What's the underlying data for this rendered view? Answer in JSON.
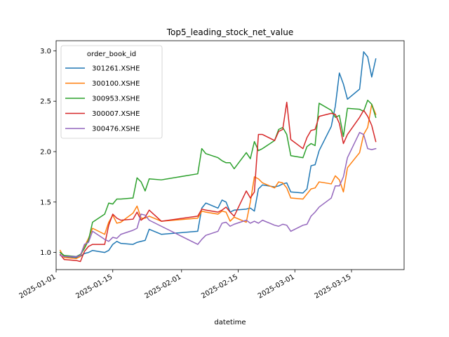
{
  "chart_data": {
    "type": "line",
    "title": "Top5_leading_stock_net_value",
    "xlabel": "datetime",
    "ylabel": "",
    "ylim": [
      0.83,
      3.1
    ],
    "xlim": [
      "2025-01-01",
      "2025-03-28"
    ],
    "grid": false,
    "legend": {
      "title": "order_book_id",
      "placement": "top-left"
    },
    "x_ticks": [
      "2025-01-01",
      "2025-01-15",
      "2025-02-01",
      "2025-02-15",
      "2025-03-01",
      "2025-03-15"
    ],
    "y_ticks": [
      1.0,
      1.5,
      2.0,
      2.5,
      3.0
    ],
    "y_tick_labels": [
      "1.0",
      "1.5",
      "2.0",
      "2.5",
      "3.0"
    ],
    "series": [
      {
        "name": "301261.XSHE",
        "color": "#1f77b4",
        "x": [
          "2025-01-02",
          "2025-01-03",
          "2025-01-06",
          "2025-01-07",
          "2025-01-08",
          "2025-01-09",
          "2025-01-10",
          "2025-01-13",
          "2025-01-14",
          "2025-01-15",
          "2025-01-16",
          "2025-01-17",
          "2025-01-20",
          "2025-01-21",
          "2025-01-22",
          "2025-01-23",
          "2025-01-24",
          "2025-01-27",
          "2025-02-05",
          "2025-02-06",
          "2025-02-07",
          "2025-02-10",
          "2025-02-11",
          "2025-02-12",
          "2025-02-13",
          "2025-02-14",
          "2025-02-17",
          "2025-02-18",
          "2025-02-19",
          "2025-02-20",
          "2025-02-21",
          "2025-02-24",
          "2025-02-25",
          "2025-02-26",
          "2025-02-27",
          "2025-02-28",
          "2025-03-03",
          "2025-03-04",
          "2025-03-05",
          "2025-03-06",
          "2025-03-07",
          "2025-03-10",
          "2025-03-11",
          "2025-03-12",
          "2025-03-13",
          "2025-03-14",
          "2025-03-17",
          "2025-03-18",
          "2025-03-19",
          "2025-03-20",
          "2025-03-21"
        ],
        "values": [
          1.0,
          0.96,
          0.95,
          0.96,
          0.99,
          1.0,
          1.02,
          1.0,
          1.02,
          1.08,
          1.11,
          1.09,
          1.08,
          1.1,
          1.11,
          1.12,
          1.23,
          1.18,
          1.21,
          1.44,
          1.49,
          1.44,
          1.52,
          1.5,
          1.4,
          1.42,
          1.43,
          1.44,
          1.41,
          1.63,
          1.67,
          1.65,
          1.66,
          1.68,
          1.69,
          1.6,
          1.59,
          1.63,
          1.86,
          1.87,
          2.01,
          2.25,
          2.45,
          2.78,
          2.67,
          2.52,
          2.62,
          2.99,
          2.94,
          2.74,
          2.92
        ]
      },
      {
        "name": "300100.XSHE",
        "color": "#ff7f0e",
        "x": [
          "2025-01-02",
          "2025-01-03",
          "2025-01-06",
          "2025-01-07",
          "2025-01-08",
          "2025-01-09",
          "2025-01-10",
          "2025-01-13",
          "2025-01-14",
          "2025-01-15",
          "2025-01-16",
          "2025-01-17",
          "2025-01-20",
          "2025-01-21",
          "2025-01-22",
          "2025-01-23",
          "2025-01-24",
          "2025-01-27",
          "2025-02-05",
          "2025-02-06",
          "2025-02-07",
          "2025-02-10",
          "2025-02-11",
          "2025-02-12",
          "2025-02-13",
          "2025-02-14",
          "2025-02-17",
          "2025-02-18",
          "2025-02-19",
          "2025-02-20",
          "2025-02-21",
          "2025-02-24",
          "2025-02-25",
          "2025-02-26",
          "2025-02-27",
          "2025-02-28",
          "2025-03-03",
          "2025-03-04",
          "2025-03-05",
          "2025-03-06",
          "2025-03-07",
          "2025-03-10",
          "2025-03-11",
          "2025-03-12",
          "2025-03-13",
          "2025-03-14",
          "2025-03-17",
          "2025-03-18",
          "2025-03-19",
          "2025-03-20",
          "2025-03-21"
        ],
        "values": [
          1.02,
          0.95,
          0.94,
          0.96,
          1.06,
          1.14,
          1.24,
          1.18,
          1.3,
          1.37,
          1.29,
          1.3,
          1.39,
          1.46,
          1.34,
          1.34,
          1.36,
          1.31,
          1.34,
          1.41,
          1.4,
          1.38,
          1.41,
          1.4,
          1.31,
          1.35,
          1.3,
          1.5,
          1.75,
          1.73,
          1.69,
          1.64,
          1.7,
          1.69,
          1.64,
          1.54,
          1.53,
          1.58,
          1.63,
          1.64,
          1.7,
          1.68,
          1.76,
          1.72,
          1.6,
          1.84,
          1.99,
          2.17,
          2.24,
          2.47,
          2.37
        ]
      },
      {
        "name": "300953.XSHE",
        "color": "#2ca02c",
        "x": [
          "2025-01-02",
          "2025-01-03",
          "2025-01-06",
          "2025-01-07",
          "2025-01-08",
          "2025-01-09",
          "2025-01-10",
          "2025-01-13",
          "2025-01-14",
          "2025-01-15",
          "2025-01-16",
          "2025-01-17",
          "2025-01-20",
          "2025-01-21",
          "2025-01-22",
          "2025-01-23",
          "2025-01-24",
          "2025-01-27",
          "2025-02-05",
          "2025-02-06",
          "2025-02-07",
          "2025-02-10",
          "2025-02-11",
          "2025-02-12",
          "2025-02-13",
          "2025-02-14",
          "2025-02-17",
          "2025-02-18",
          "2025-02-19",
          "2025-02-20",
          "2025-02-21",
          "2025-02-24",
          "2025-02-25",
          "2025-02-26",
          "2025-02-27",
          "2025-02-28",
          "2025-03-03",
          "2025-03-04",
          "2025-03-05",
          "2025-03-06",
          "2025-03-07",
          "2025-03-10",
          "2025-03-11",
          "2025-03-12",
          "2025-03-13",
          "2025-03-14",
          "2025-03-17",
          "2025-03-18",
          "2025-03-19",
          "2025-03-20",
          "2025-03-21"
        ],
        "values": [
          1.0,
          0.97,
          0.96,
          0.98,
          1.04,
          1.12,
          1.3,
          1.38,
          1.49,
          1.48,
          1.53,
          1.53,
          1.54,
          1.74,
          1.7,
          1.61,
          1.73,
          1.72,
          1.78,
          2.03,
          1.98,
          1.94,
          1.91,
          1.89,
          1.89,
          1.83,
          1.99,
          1.93,
          2.1,
          2.01,
          2.03,
          2.11,
          2.22,
          2.24,
          2.17,
          1.96,
          1.94,
          2.05,
          2.08,
          2.06,
          2.48,
          2.41,
          2.34,
          2.36,
          2.15,
          2.43,
          2.42,
          2.4,
          2.51,
          2.47,
          2.34
        ]
      },
      {
        "name": "300007.XSHE",
        "color": "#d62728",
        "x": [
          "2025-01-02",
          "2025-01-03",
          "2025-01-06",
          "2025-01-07",
          "2025-01-08",
          "2025-01-09",
          "2025-01-10",
          "2025-01-13",
          "2025-01-14",
          "2025-01-15",
          "2025-01-16",
          "2025-01-17",
          "2025-01-20",
          "2025-01-21",
          "2025-01-22",
          "2025-01-23",
          "2025-01-24",
          "2025-01-27",
          "2025-02-05",
          "2025-02-06",
          "2025-02-07",
          "2025-02-10",
          "2025-02-11",
          "2025-02-12",
          "2025-02-13",
          "2025-02-14",
          "2025-02-17",
          "2025-02-18",
          "2025-02-19",
          "2025-02-20",
          "2025-02-21",
          "2025-02-24",
          "2025-02-25",
          "2025-02-26",
          "2025-02-27",
          "2025-02-28",
          "2025-03-03",
          "2025-03-04",
          "2025-03-05",
          "2025-03-06",
          "2025-03-07",
          "2025-03-10",
          "2025-03-11",
          "2025-03-12",
          "2025-03-13",
          "2025-03-14",
          "2025-03-17",
          "2025-03-18",
          "2025-03-19",
          "2025-03-20",
          "2025-03-21"
        ],
        "values": [
          0.98,
          0.93,
          0.92,
          0.91,
          1.01,
          1.06,
          1.08,
          1.08,
          1.27,
          1.38,
          1.34,
          1.32,
          1.33,
          1.4,
          1.32,
          1.35,
          1.42,
          1.31,
          1.36,
          1.43,
          1.42,
          1.4,
          1.42,
          1.45,
          1.4,
          1.36,
          1.61,
          1.54,
          1.6,
          2.17,
          2.17,
          2.11,
          2.2,
          2.22,
          2.49,
          2.12,
          2.03,
          2.14,
          2.21,
          2.22,
          2.35,
          2.38,
          2.37,
          2.28,
          2.08,
          2.17,
          2.34,
          2.41,
          2.35,
          2.26,
          2.1
        ]
      },
      {
        "name": "300476.XSHE",
        "color": "#9467bd",
        "x": [
          "2025-01-02",
          "2025-01-03",
          "2025-01-06",
          "2025-01-07",
          "2025-01-08",
          "2025-01-09",
          "2025-01-10",
          "2025-01-13",
          "2025-01-14",
          "2025-01-15",
          "2025-01-16",
          "2025-01-17",
          "2025-01-20",
          "2025-01-21",
          "2025-01-22",
          "2025-01-23",
          "2025-01-24",
          "2025-01-27",
          "2025-02-05",
          "2025-02-06",
          "2025-02-07",
          "2025-02-10",
          "2025-02-11",
          "2025-02-12",
          "2025-02-13",
          "2025-02-14",
          "2025-02-17",
          "2025-02-18",
          "2025-02-19",
          "2025-02-20",
          "2025-02-21",
          "2025-02-24",
          "2025-02-25",
          "2025-02-26",
          "2025-02-27",
          "2025-02-28",
          "2025-03-03",
          "2025-03-04",
          "2025-03-05",
          "2025-03-06",
          "2025-03-07",
          "2025-03-10",
          "2025-03-11",
          "2025-03-12",
          "2025-03-13",
          "2025-03-14",
          "2025-03-17",
          "2025-03-18",
          "2025-03-19",
          "2025-03-20",
          "2025-03-21"
        ],
        "values": [
          0.97,
          0.96,
          0.96,
          0.97,
          1.08,
          1.1,
          1.21,
          1.13,
          1.11,
          1.15,
          1.14,
          1.18,
          1.22,
          1.24,
          1.38,
          1.37,
          1.32,
          1.26,
          1.08,
          1.13,
          1.17,
          1.21,
          1.29,
          1.3,
          1.26,
          1.28,
          1.32,
          1.29,
          1.31,
          1.29,
          1.32,
          1.27,
          1.26,
          1.28,
          1.27,
          1.21,
          1.27,
          1.28,
          1.36,
          1.4,
          1.45,
          1.54,
          1.66,
          1.66,
          1.75,
          1.94,
          2.19,
          2.17,
          2.03,
          2.02,
          2.03
        ]
      }
    ]
  }
}
